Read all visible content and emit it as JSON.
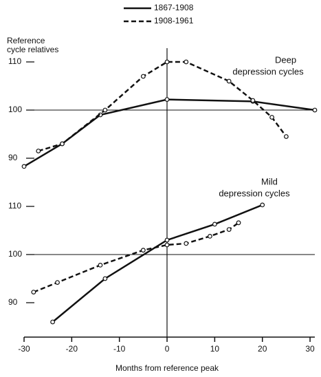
{
  "chart_data": {
    "type": "line",
    "series": [
      {
        "name": "1867-1908",
        "color": "#111111",
        "dash": false
      },
      {
        "name": "1908-1961",
        "color": "#111111",
        "dash": true
      }
    ],
    "y_label": [
      "Reference",
      "cycle relatives"
    ],
    "x_label": "Months from reference peak",
    "xlim": [
      -30,
      31
    ],
    "xticks": [
      -30,
      -20,
      -10,
      0,
      10,
      20,
      30
    ],
    "panels": [
      {
        "annotation": [
          "Deep",
          "depression cycles"
        ],
        "ylim": [
          87,
          114
        ],
        "yticks": [
          90,
          100,
          110
        ],
        "reference_line": 100,
        "series": [
          {
            "x": [
              -30,
              -22,
              -14,
              0,
              18,
              31
            ],
            "values": [
              88.3,
              93,
              99,
              102.2,
              101.8,
              100
            ]
          },
          {
            "x": [
              -27,
              -22,
              -13,
              -5,
              0,
              4,
              13,
              18,
              22,
              25
            ],
            "values": [
              91.5,
              93,
              100,
              107,
              110,
              110,
              106,
              102,
              98.5,
              94.5
            ]
          }
        ]
      },
      {
        "annotation": [
          "Mild",
          "depression cycles"
        ],
        "ylim": [
          83,
          116
        ],
        "yticks": [
          90,
          100,
          110
        ],
        "reference_line": 100,
        "series": [
          {
            "x": [
              -24,
              -13,
              0,
              10,
              20
            ],
            "values": [
              86,
              95,
              103,
              106.3,
              110.3
            ]
          },
          {
            "x": [
              -28,
              -23,
              -14,
              -5,
              0,
              4,
              9,
              13,
              15
            ],
            "values": [
              92.2,
              94.2,
              97.8,
              100.9,
              102,
              102.3,
              103.8,
              105.2,
              106.6
            ]
          }
        ]
      }
    ]
  }
}
